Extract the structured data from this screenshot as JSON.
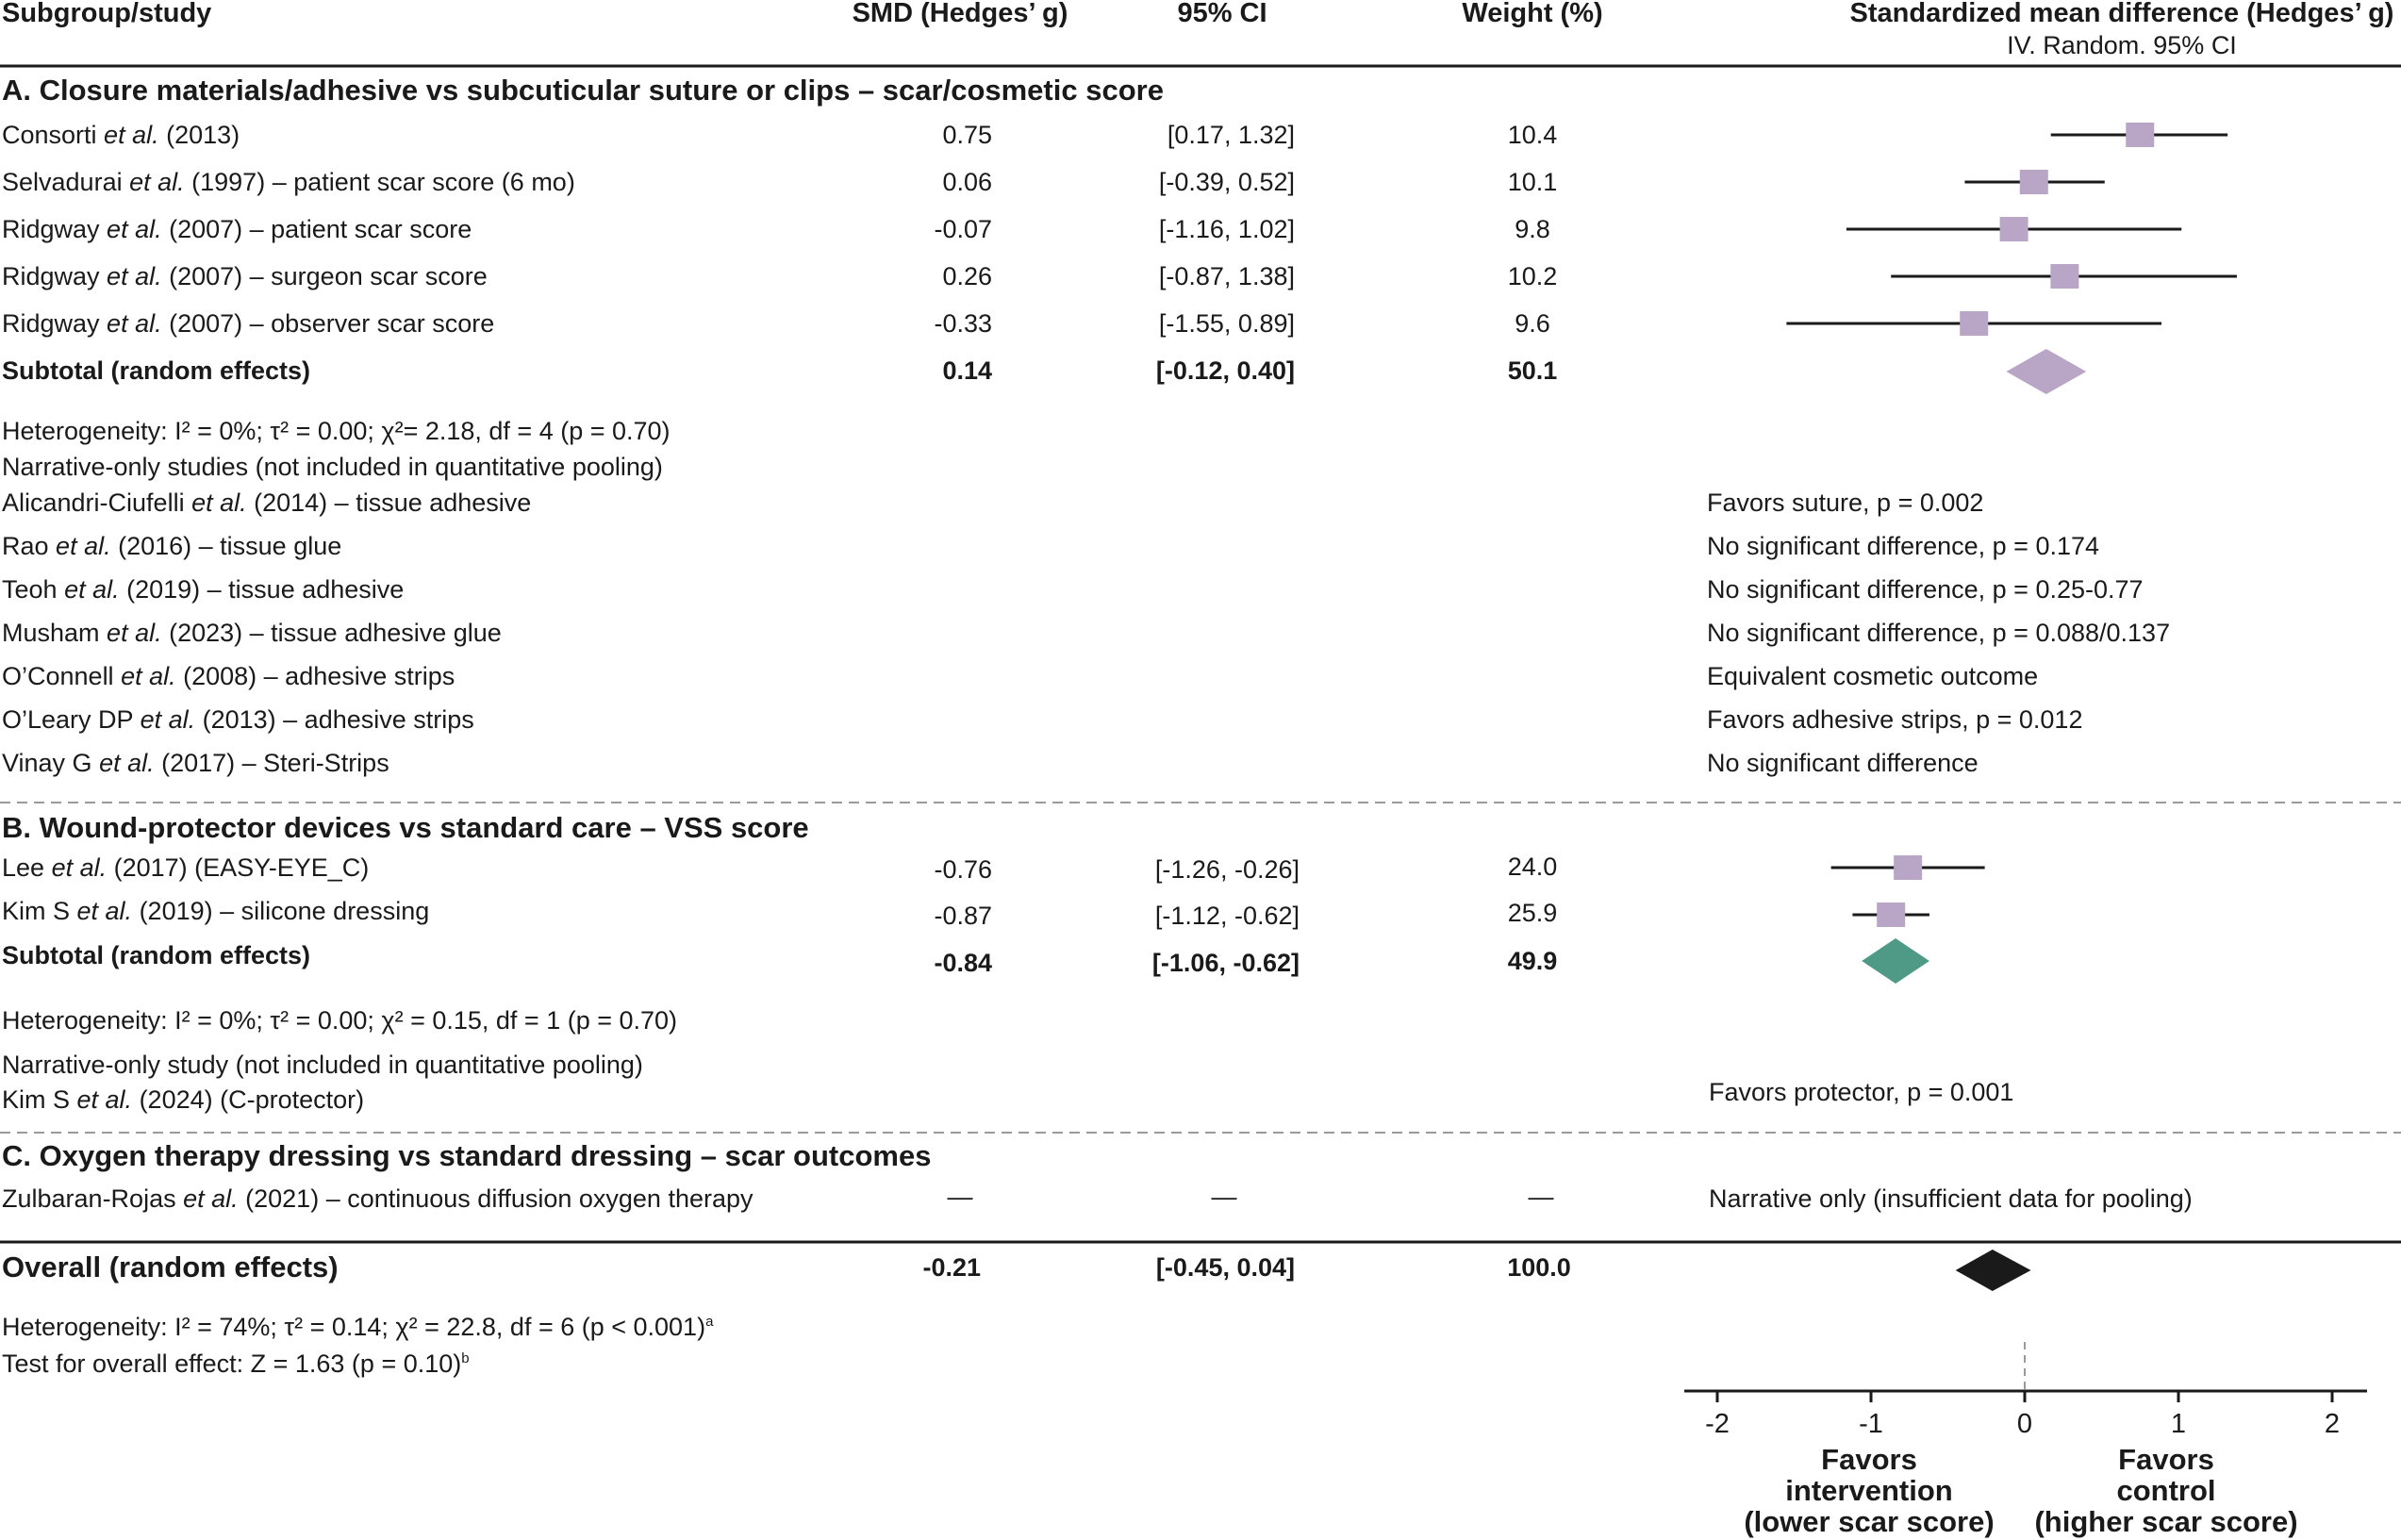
{
  "header": {
    "study": "Subgroup/study",
    "smd": "SMD (Hedges’ g)",
    "ci": "95% CI",
    "weight": "Weight (%)",
    "plot_title": "Standardized mean difference (Hedges’ g)",
    "plot_subtitle": "IV. Random. 95% CI"
  },
  "sections": [
    {
      "title": "A. Closure materials/adhesive vs subcuticular suture or clips – scar/cosmetic score",
      "studies": [
        {
          "pre": "Consorti ",
          "etal": "et al.",
          "post": " (2013)",
          "smd": "0.75",
          "ci": "[0.17, 1.32]",
          "weight": "10.4"
        },
        {
          "pre": "Selvadurai ",
          "etal": "et al.",
          "post": " (1997) – patient scar score (6 mo)",
          "smd": "0.06",
          "ci": "[-0.39, 0.52]",
          "weight": "10.1"
        },
        {
          "pre": "Ridgway ",
          "etal": "et al.",
          "post": " (2007) – patient scar score",
          "smd": "-0.07",
          "ci": "[-1.16, 1.02]",
          "weight": "9.8"
        },
        {
          "pre": "Ridgway ",
          "etal": "et al.",
          "post": " (2007) – surgeon scar score",
          "smd": "0.26",
          "ci": "[-0.87, 1.38]",
          "weight": "10.2"
        },
        {
          "pre": "Ridgway ",
          "etal": "et al.",
          "post": " (2007) – observer scar score",
          "smd": "-0.33",
          "ci": "[-1.55, 0.89]",
          "weight": "9.6"
        }
      ],
      "subtotal": {
        "label": "Subtotal (random effects)",
        "smd": "0.14",
        "ci": "[-0.12, 0.40]",
        "weight": "50.1"
      },
      "heterogeneity": {
        "prefix": "Heterogeneity: I",
        "i2": "² = 0%; ",
        "tau": "τ",
        "tau2": "² = 0.00; ",
        "chi": "χ",
        "chi2": "²= 2.18, df = 4 (p = 0.70)"
      },
      "narrative_heading": "Narrative-only studies (not included in quantitative pooling)",
      "narrative": [
        {
          "pre": "Alicandri-Ciufelli ",
          "etal": "et al.",
          "post": " (2014) – tissue adhesive",
          "result": "Favors suture, p = 0.002"
        },
        {
          "pre": "Rao ",
          "etal": "et al.",
          "post": " (2016) – tissue glue",
          "result": "No significant difference, p = 0.174"
        },
        {
          "pre": "Teoh ",
          "etal": "et al.",
          "post": " (2019) – tissue adhesive",
          "result": "No significant difference, p = 0.25-0.77"
        },
        {
          "pre": "Musham ",
          "etal": "et al.",
          "post": " (2023) – tissue adhesive glue",
          "result": "No significant difference, p = 0.088/0.137"
        },
        {
          "pre": "O’Connell ",
          "etal": "et al.",
          "post": " (2008) – adhesive strips",
          "result": "Equivalent cosmetic outcome"
        },
        {
          "pre": "O’Leary DP ",
          "etal": "et al.",
          "post": " (2013) – adhesive strips",
          "result": "Favors adhesive strips, p = 0.012"
        },
        {
          "pre": "Vinay G ",
          "etal": "et al.",
          "post": " (2017) – Steri-Strips",
          "result": "No significant difference"
        }
      ]
    },
    {
      "title": "B. Wound-protector devices vs standard care – VSS score",
      "studies": [
        {
          "pre": "Lee ",
          "etal": "et al.",
          "post": " (2017) (EASY-EYE_C)",
          "smd": "-0.76",
          "ci": "[-1.26, -0.26]",
          "weight": "24.0"
        },
        {
          "pre": "Kim S ",
          "etal": "et al.",
          "post": " (2019) – silicone dressing",
          "smd": "-0.87",
          "ci": "[-1.12, -0.62]",
          "weight": "25.9"
        }
      ],
      "subtotal": {
        "label": "Subtotal (random effects)",
        "smd": "-0.84",
        "ci": "[-1.06, -0.62]",
        "weight": "49.9"
      },
      "heterogeneity": {
        "prefix": "Heterogeneity: I",
        "i2": "² = 0%; ",
        "tau": "τ",
        "tau2": "² = 0.00; ",
        "chi": "χ",
        "chi2": "² = 0.15, df = 1 (p = 0.70)"
      },
      "narrative_heading": "Narrative-only study (not included in quantitative pooling)",
      "narrative": [
        {
          "pre": "Kim S ",
          "etal": "et al.",
          "post": " (2024) (C-protector)",
          "result": "Favors protector, p = 0.001"
        }
      ]
    },
    {
      "title": "C. Oxygen therapy dressing vs standard dressing – scar outcomes",
      "studies": [
        {
          "pre": "Zulbaran-Rojas ",
          "etal": "et al.",
          "post": " (2021) – continuous diffusion oxygen therapy",
          "smd": "—",
          "ci": "—",
          "weight": "—",
          "result": "Narrative only (insufficient data for pooling)"
        }
      ]
    }
  ],
  "overall": {
    "label": "Overall (random effects)",
    "smd": "-0.21",
    "ci": "[-0.45, 0.04]",
    "weight": "100.0",
    "heterogeneity": {
      "prefix": "Heterogeneity: I",
      "i2": "² = 74%; ",
      "tau": "τ",
      "tau2": "² = 0.14; ",
      "chi": "χ",
      "chi2": "² = 22.8, df = 6 (p < 0.001)",
      "note": "a"
    },
    "test": "Test for overall effect: Z = 1.63 (p = 0.10)",
    "test_note": "b"
  },
  "axis": {
    "ticks": [
      "-2",
      "-1",
      "0",
      "1",
      "2"
    ],
    "left_label": [
      "Favors",
      "intervention",
      "(lower scar score)"
    ],
    "right_label": [
      "Favors",
      "control",
      "(higher scar score)"
    ]
  },
  "chart_data": {
    "type": "forest",
    "xlim": [
      -2,
      2
    ],
    "xticks": [
      -2,
      -1,
      0,
      1,
      2
    ],
    "reference_line": 0,
    "colors": {
      "study_marker": "#b9a5c6",
      "subtotal_a": "#b9a5c6",
      "subtotal_b": "#4e9a86",
      "overall": "#1a1a1a",
      "line": "#1a1a1a"
    },
    "studies": [
      {
        "label": "Consorti et al. (2013)",
        "smd": 0.75,
        "lo": 0.17,
        "hi": 1.32,
        "weight": 10.4
      },
      {
        "label": "Selvadurai et al. (1997) – patient scar score (6 mo)",
        "smd": 0.06,
        "lo": -0.39,
        "hi": 0.52,
        "weight": 10.1
      },
      {
        "label": "Ridgway et al. (2007) – patient scar score",
        "smd": -0.07,
        "lo": -1.16,
        "hi": 1.02,
        "weight": 9.8
      },
      {
        "label": "Ridgway et al. (2007) – surgeon scar score",
        "smd": 0.26,
        "lo": -0.87,
        "hi": 1.38,
        "weight": 10.2
      },
      {
        "label": "Ridgway et al. (2007) – observer scar score",
        "smd": -0.33,
        "lo": -1.55,
        "hi": 0.89,
        "weight": 9.6
      },
      {
        "label": "Lee et al. (2017) (EASY-EYE_C)",
        "smd": -0.76,
        "lo": -1.26,
        "hi": -0.26,
        "weight": 24.0
      },
      {
        "label": "Kim S et al. (2019) – silicone dressing",
        "smd": -0.87,
        "lo": -1.12,
        "hi": -0.62,
        "weight": 25.9
      }
    ],
    "subtotals": [
      {
        "label": "Subtotal (random effects) A",
        "smd": 0.14,
        "lo": -0.12,
        "hi": 0.4,
        "weight": 50.1
      },
      {
        "label": "Subtotal (random effects) B",
        "smd": -0.84,
        "lo": -1.06,
        "hi": -0.62,
        "weight": 49.9
      }
    ],
    "overall": {
      "label": "Overall (random effects)",
      "smd": -0.21,
      "lo": -0.45,
      "hi": 0.04,
      "weight": 100.0
    }
  }
}
